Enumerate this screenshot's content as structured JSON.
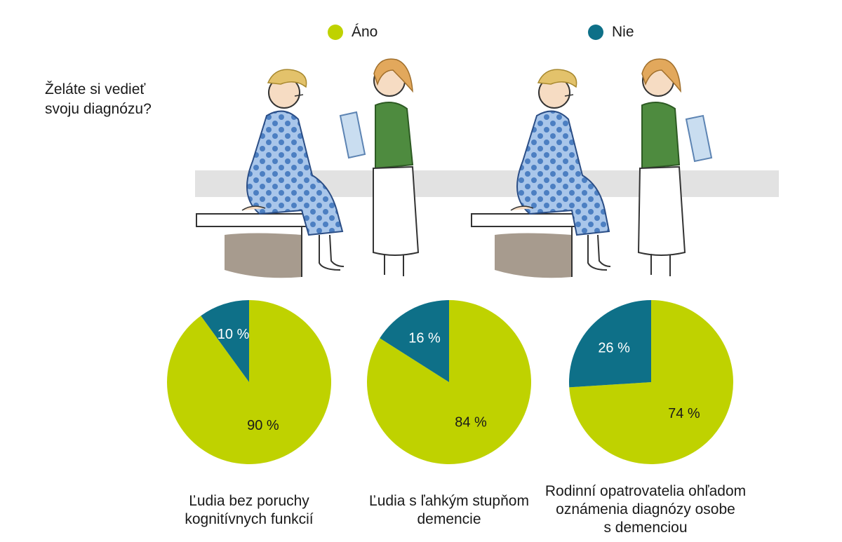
{
  "question": [
    "Želáte si vedieť",
    "svoju diagnózu?"
  ],
  "legend": [
    {
      "label": "Áno",
      "color": "#bfd200"
    },
    {
      "label": "Nie",
      "color": "#0e7088"
    }
  ],
  "chart_data": [
    {
      "type": "pie",
      "categories": [
        "Áno",
        "Nie"
      ],
      "values": [
        90,
        10
      ],
      "labels": [
        "90 %",
        "10 %"
      ],
      "caption": [
        "Ľudia bez poruchy",
        "kognitívnych funkcií"
      ]
    },
    {
      "type": "pie",
      "categories": [
        "Áno",
        "Nie"
      ],
      "values": [
        84,
        16
      ],
      "labels": [
        "84 %",
        "16 %"
      ],
      "caption": [
        "Ľudia s ľahkým stupňom",
        "demencie"
      ]
    },
    {
      "type": "pie",
      "categories": [
        "Áno",
        "Nie"
      ],
      "values": [
        74,
        26
      ],
      "labels": [
        "74 %",
        "26 %"
      ],
      "caption": [
        "Rodinní opatrovatelia ohľadom",
        "oznámenia diagnózy osobe",
        "s demenciou"
      ]
    }
  ]
}
